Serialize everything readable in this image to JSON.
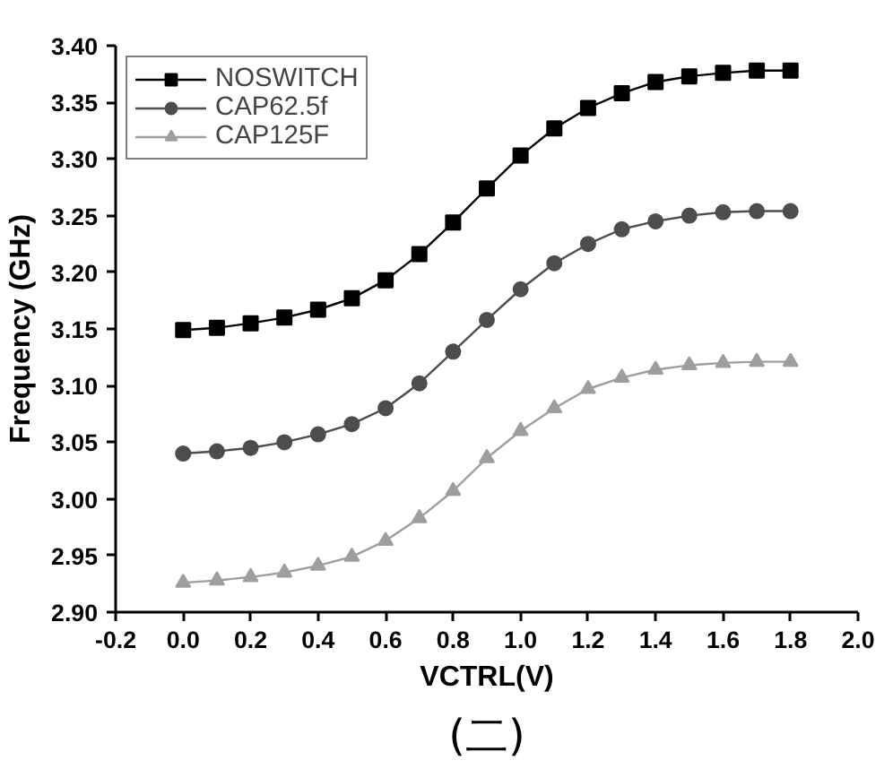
{
  "chart_data": {
    "type": "line",
    "xlabel": "VCTRL(V)",
    "ylabel": "Frequency (GHz)",
    "annotations": [
      "(二)"
    ],
    "x": [
      0,
      0.1,
      0.2,
      0.3,
      0.4,
      0.5,
      0.6,
      0.7,
      0.8,
      0.9,
      1.0,
      1.1,
      1.2,
      1.3,
      1.4,
      1.5,
      1.6,
      1.7,
      1.8
    ],
    "series": [
      {
        "name": "NOSWITCH",
        "color": "#000000",
        "marker": "square",
        "values": [
          3.149,
          3.151,
          3.155,
          3.16,
          3.167,
          3.177,
          3.193,
          3.216,
          3.244,
          3.274,
          3.303,
          3.327,
          3.345,
          3.358,
          3.368,
          3.373,
          3.376,
          3.378,
          3.378
        ]
      },
      {
        "name": "CAP62.5f",
        "color": "#4d4d4d",
        "marker": "circle",
        "values": [
          3.04,
          3.042,
          3.045,
          3.05,
          3.057,
          3.066,
          3.08,
          3.102,
          3.13,
          3.158,
          3.185,
          3.208,
          3.225,
          3.238,
          3.245,
          3.25,
          3.253,
          3.254,
          3.254
        ]
      },
      {
        "name": "CAP125F",
        "color": "#9e9e9e",
        "marker": "triangle",
        "values": [
          2.926,
          2.928,
          2.931,
          2.935,
          2.941,
          2.949,
          2.963,
          2.983,
          3.007,
          3.036,
          3.06,
          3.08,
          3.097,
          3.107,
          3.114,
          3.118,
          3.12,
          3.121,
          3.121
        ]
      }
    ],
    "xlim": [
      -0.2,
      2.0
    ],
    "xticks": [
      -0.2,
      {
        "value": 0,
        "label": "0.0"
      },
      0.2,
      0.4,
      0.6,
      0.8,
      {
        "value": 1,
        "label": "1.0"
      },
      1.2,
      1.4,
      1.6,
      1.8,
      {
        "value": 2,
        "label": "2.0"
      }
    ],
    "ylim": [
      2.9,
      3.4
    ],
    "yticks": [
      {
        "value": 2.9,
        "label": "2.90"
      },
      2.95,
      {
        "value": 3,
        "label": "3.00"
      },
      3.05,
      {
        "value": 3.1,
        "label": "3.10"
      },
      3.15,
      {
        "value": 3.2,
        "label": "3.20"
      },
      3.25,
      {
        "value": 3.3,
        "label": "3.30"
      },
      3.35,
      {
        "value": 3.4,
        "label": "3.40"
      }
    ],
    "grid": false,
    "legend": "top left",
    "line_style": "solid"
  }
}
